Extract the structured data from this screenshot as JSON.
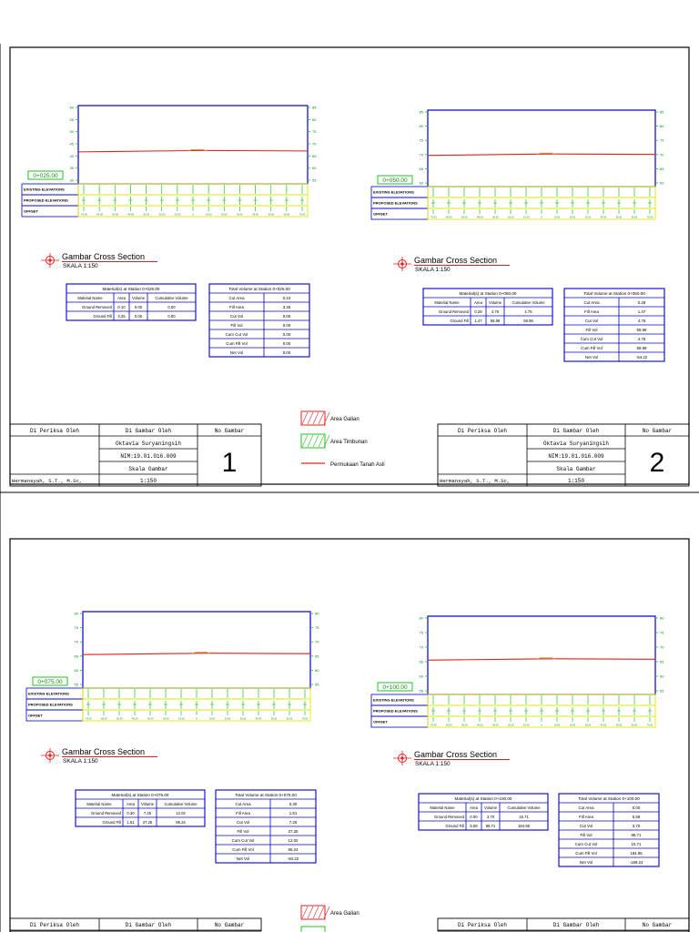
{
  "sheets": [
    {
      "panels": [
        {
          "station_label": "0+025.00",
          "left_axis": [
            "60",
            "55",
            "50",
            "45",
            "40",
            "35",
            "30"
          ],
          "right_axis": [
            "85",
            "80",
            "75",
            "70",
            "65",
            "60",
            "55"
          ],
          "rows": [
            "EXISTING ELEVATIONS",
            "PROPOSED ELEVATIONS",
            "OFFSET"
          ],
          "title": "Gambar Cross Section",
          "scale": "SKALA 1:150",
          "materials": {
            "title": "Material(s) at Station 0+025.00",
            "headers": [
              "Material Name",
              "Area",
              "Volume",
              "Cumulative Volume"
            ],
            "rows": [
              [
                "Ground Removed",
                "0.10",
                "0.00",
                "0.00"
              ],
              [
                "Ground Fill",
                "3.25",
                "0.00",
                "0.00"
              ]
            ]
          },
          "totals": {
            "title": "Total Volume at Station 0+025.00",
            "rows": [
              [
                "Cut Area",
                "0.10"
              ],
              [
                "Fill Area",
                "3.25"
              ],
              [
                "Cut Vol",
                "0.00"
              ],
              [
                "Fill Vol",
                "0.00"
              ],
              [
                "Cum Cut Vol",
                "0.00"
              ],
              [
                "Cum Fill Vol",
                "0.00"
              ],
              [
                "Net Vol",
                "0.00"
              ]
            ]
          }
        },
        {
          "station_label": "0+050.00",
          "left_axis": [
            "85",
            "80",
            "75",
            "70",
            "65",
            "60"
          ],
          "right_axis": [
            "85",
            "80",
            "75",
            "70",
            "65",
            "60"
          ],
          "rows": [
            "EXISTING ELEVATIONS",
            "PROPOSED ELEVATIONS",
            "OFFSET"
          ],
          "title": "Gambar Cross Section",
          "scale": "SKALA 1:150",
          "materials": {
            "title": "Material(s) at Station 0+050.00",
            "headers": [
              "Material Name",
              "Area",
              "Volume",
              "Cumulative Volume"
            ],
            "rows": [
              [
                "Ground Removed",
                "0.28",
                "4.76",
                "4.76"
              ],
              [
                "Ground Fill",
                "1.47",
                "58.99",
                "58.99"
              ]
            ]
          },
          "totals": {
            "title": "Total Volume at Station 0+050.00",
            "rows": [
              [
                "Cut Area",
                "0.28"
              ],
              [
                "Fill Area",
                "1.47"
              ],
              [
                "Cut Vol",
                "4.76"
              ],
              [
                "Fill Vol",
                "58.99"
              ],
              [
                "Cum Cut Vol",
                "4.76"
              ],
              [
                "Cum Fill Vol",
                "58.99"
              ],
              [
                "Net Vol",
                "-54.22"
              ]
            ]
          }
        }
      ],
      "title_block": {
        "checked_by_label": "Di Periksa Oleh",
        "drawn_by_label": "Di Gambar Oleh",
        "sheet_no_label": "No Gambar",
        "drawn_name": "Oktavia Suryaningsih",
        "drawn_nim": "NIM:19.01.016.009",
        "scale_label": "Skala Gambar",
        "scale_value": "1:150",
        "checker_name": "Hermansyah, S.T., M.Sc,",
        "sheet_numbers": [
          "1",
          "2"
        ]
      },
      "legend": [
        {
          "label": "Area Galian",
          "color": "#e02020"
        },
        {
          "label": "Area Timbunan",
          "color": "#22c022"
        },
        {
          "label": "Permukaan Tanah Asli",
          "color": "#e02020"
        }
      ]
    },
    {
      "panels": [
        {
          "station_label": "0+075.00",
          "left_axis": [
            "80",
            "75",
            "70",
            "65",
            "60",
            "55"
          ],
          "right_axis": [
            "80",
            "75",
            "70",
            "65",
            "60",
            "55"
          ],
          "rows": [
            "EXISTING ELEVATIONS",
            "PROPOSED ELEVATIONS",
            "OFFSET"
          ],
          "title": "Gambar Cross Section",
          "scale": "SKALA 1:150",
          "materials": {
            "title": "Material(s) at Station 0+075.00",
            "headers": [
              "Material Name",
              "Area",
              "Volume",
              "Cumulative Volume"
            ],
            "rows": [
              [
                "Ground Removed",
                "0.30",
                "7.25",
                "12.02"
              ],
              [
                "Ground Fill",
                "1.51",
                "37.25",
                "96.24"
              ]
            ]
          },
          "totals": {
            "title": "Total Volume at Station 0+075.00",
            "rows": [
              [
                "Cut Area",
                "0.30"
              ],
              [
                "Fill Area",
                "1.51"
              ],
              [
                "Cut Vol",
                "7.25"
              ],
              [
                "Fill Vol",
                "37.25"
              ],
              [
                "Cum Cut Vol",
                "12.02"
              ],
              [
                "Cum Fill Vol",
                "96.24"
              ],
              [
                "Net Vol",
                "-84.22"
              ]
            ]
          }
        },
        {
          "station_label": "0+100.00",
          "left_axis": [
            "80",
            "75",
            "70",
            "65",
            "60",
            "55"
          ],
          "right_axis": [
            "80",
            "75",
            "70",
            "65",
            "60",
            "55"
          ],
          "rows": [
            "EXISTING ELEVATIONS",
            "PROPOSED ELEVATIONS",
            "OFFSET"
          ],
          "title": "Gambar Cross Section",
          "scale": "SKALA 1:150",
          "materials": {
            "title": "Material(s) at Station 0+100.00",
            "headers": [
              "Material Name",
              "Area",
              "Volume",
              "Cumulative Volume"
            ],
            "rows": [
              [
                "Ground Removed",
                "0.00",
                "3.70",
                "15.71"
              ],
              [
                "Ground Fill",
                "5.59",
                "88.71",
                "184.95"
              ]
            ]
          },
          "totals": {
            "title": "Total Volume at Station 0+100.00",
            "rows": [
              [
                "Cut Area",
                "0.00"
              ],
              [
                "Fill Area",
                "5.59"
              ],
              [
                "Cut Vol",
                "3.70"
              ],
              [
                "Fill Vol",
                "88.71"
              ],
              [
                "Cum Cut Vol",
                "15.71"
              ],
              [
                "Cum Fill Vol",
                "184.95"
              ],
              [
                "Net Vol",
                "-169.24"
              ]
            ]
          }
        }
      ],
      "title_block": {
        "checked_by_label": "Di Periksa Oleh",
        "drawn_by_label": "Di Gambar Oleh",
        "sheet_no_label": "No Gambar"
      },
      "legend": [
        {
          "label": "Area Galian",
          "color": "#e02020"
        }
      ]
    }
  ],
  "offset_ticks": [
    "-70.00",
    "-60.00",
    "-50.00",
    "-40.00",
    "-30.00",
    "-20.00",
    "-10.00",
    "0",
    "10.00",
    "20.00",
    "30.00",
    "40.00",
    "50.00",
    "60.00",
    "70.00"
  ],
  "colors": {
    "frame": "#000000",
    "axis": "#0000cc",
    "row_band": "#e6e600",
    "row_tick": "#22c022",
    "ground": "#e02020",
    "fill": "#22c022",
    "label_box": "#22c022"
  }
}
